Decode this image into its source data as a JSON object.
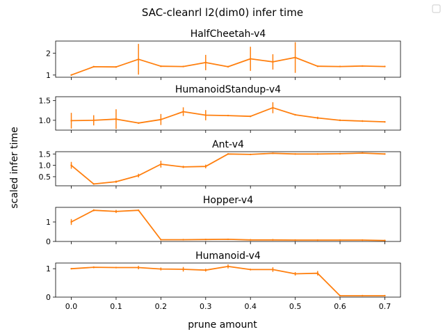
{
  "figure": {
    "suptitle": "SAC-cleanrl l2(dim0) infer time",
    "ylabel": "scaled infer time",
    "xlabel": "prune amount",
    "legend_marker": "empty-legend-box"
  },
  "colors": {
    "line": "#ff7f0e",
    "errorbar": "#ff7f0e",
    "axes": "#000000",
    "background": "#ffffff"
  },
  "chart_data": [
    {
      "type": "line",
      "title": "HalfCheetah-v4",
      "x": [
        0.0,
        0.05,
        0.1,
        0.15,
        0.2,
        0.25,
        0.3,
        0.35,
        0.4,
        0.45,
        0.5,
        0.55,
        0.6,
        0.65,
        0.7
      ],
      "series": [
        {
          "values": [
            1.0,
            1.38,
            1.37,
            1.72,
            1.4,
            1.39,
            1.57,
            1.38,
            1.74,
            1.6,
            1.8,
            1.4,
            1.39,
            1.41,
            1.39
          ],
          "err": [
            0.0,
            0.0,
            0.0,
            0.7,
            0.0,
            0.0,
            0.35,
            0.0,
            0.55,
            0.35,
            0.7,
            0.0,
            0.0,
            0.0,
            0.0
          ]
        }
      ],
      "xlim": [
        -0.035,
        0.735
      ],
      "ylim": [
        0.9,
        2.55
      ],
      "yticks": [
        1,
        2
      ],
      "ytick_labels": [
        "1",
        "2"
      ]
    },
    {
      "type": "line",
      "title": "HumanoidStandup-v4",
      "x": [
        0.0,
        0.05,
        0.1,
        0.15,
        0.2,
        0.25,
        0.3,
        0.35,
        0.4,
        0.45,
        0.5,
        0.55,
        0.6,
        0.65,
        0.7
      ],
      "series": [
        {
          "values": [
            0.99,
            1.0,
            1.03,
            0.93,
            1.02,
            1.22,
            1.13,
            1.12,
            1.1,
            1.32,
            1.14,
            1.06,
            1.0,
            0.98,
            0.96
          ],
          "err": [
            0.2,
            0.13,
            0.25,
            0.0,
            0.14,
            0.11,
            0.13,
            0.0,
            0.0,
            0.14,
            0.0,
            0.03,
            0.02,
            0.02,
            0.01
          ]
        }
      ],
      "xlim": [
        -0.035,
        0.735
      ],
      "ylim": [
        0.75,
        1.6
      ],
      "yticks": [
        1.0,
        1.5
      ],
      "ytick_labels": [
        "1.0",
        "1.5"
      ]
    },
    {
      "type": "line",
      "title": "Ant-v4",
      "x": [
        0.0,
        0.05,
        0.1,
        0.15,
        0.2,
        0.25,
        0.3,
        0.35,
        0.4,
        0.45,
        0.5,
        0.55,
        0.6,
        0.65,
        0.7
      ],
      "series": [
        {
          "values": [
            1.0,
            0.18,
            0.28,
            0.55,
            1.05,
            0.93,
            0.95,
            1.5,
            1.48,
            1.53,
            1.5,
            1.5,
            1.51,
            1.54,
            1.5
          ],
          "err": [
            0.15,
            0.0,
            0.05,
            0.08,
            0.15,
            0.05,
            0.08,
            0.03,
            0.0,
            0.02,
            0.0,
            0.0,
            0.0,
            0.0,
            0.0
          ]
        }
      ],
      "xlim": [
        -0.035,
        0.735
      ],
      "ylim": [
        0.1,
        1.6
      ],
      "yticks": [
        0.5,
        1.0,
        1.5
      ],
      "ytick_labels": [
        "0.5",
        "1.0",
        "1.5"
      ]
    },
    {
      "type": "line",
      "title": "Hopper-v4",
      "x": [
        0.0,
        0.05,
        0.1,
        0.15,
        0.2,
        0.25,
        0.3,
        0.35,
        0.4,
        0.45,
        0.5,
        0.55,
        0.6,
        0.65,
        0.7
      ],
      "series": [
        {
          "values": [
            1.0,
            1.6,
            1.54,
            1.6,
            0.09,
            0.09,
            0.1,
            0.11,
            0.08,
            0.08,
            0.07,
            0.07,
            0.07,
            0.07,
            0.05
          ],
          "err": [
            0.15,
            0.05,
            0.08,
            0.0,
            0.0,
            0.0,
            0.0,
            0.0,
            0.0,
            0.0,
            0.0,
            0.0,
            0.0,
            0.0,
            0.0
          ]
        }
      ],
      "xlim": [
        -0.035,
        0.735
      ],
      "ylim": [
        0.0,
        1.75
      ],
      "yticks": [
        0,
        1
      ],
      "ytick_labels": [
        "0",
        "1"
      ]
    },
    {
      "type": "line",
      "title": "Humanoid-v4",
      "x": [
        0.0,
        0.05,
        0.1,
        0.15,
        0.2,
        0.25,
        0.3,
        0.35,
        0.4,
        0.45,
        0.5,
        0.55,
        0.6,
        0.65,
        0.7
      ],
      "series": [
        {
          "values": [
            1.0,
            1.05,
            1.04,
            1.04,
            0.99,
            0.98,
            0.95,
            1.08,
            0.97,
            0.97,
            0.82,
            0.84,
            0.05,
            0.05,
            0.05
          ],
          "err": [
            0.02,
            0.03,
            0.02,
            0.06,
            0.05,
            0.08,
            0.05,
            0.07,
            0.03,
            0.08,
            0.06,
            0.08,
            0.0,
            0.0,
            0.0
          ]
        }
      ],
      "xlim": [
        -0.035,
        0.735
      ],
      "ylim": [
        0.0,
        1.2
      ],
      "yticks": [
        0,
        1
      ],
      "ytick_labels": [
        "0",
        "1"
      ]
    }
  ],
  "xaxis": {
    "ticks": [
      0.0,
      0.1,
      0.2,
      0.3,
      0.4,
      0.5,
      0.6,
      0.7
    ],
    "tick_labels": [
      "0.0",
      "0.1",
      "0.2",
      "0.3",
      "0.4",
      "0.5",
      "0.6",
      "0.7"
    ]
  }
}
